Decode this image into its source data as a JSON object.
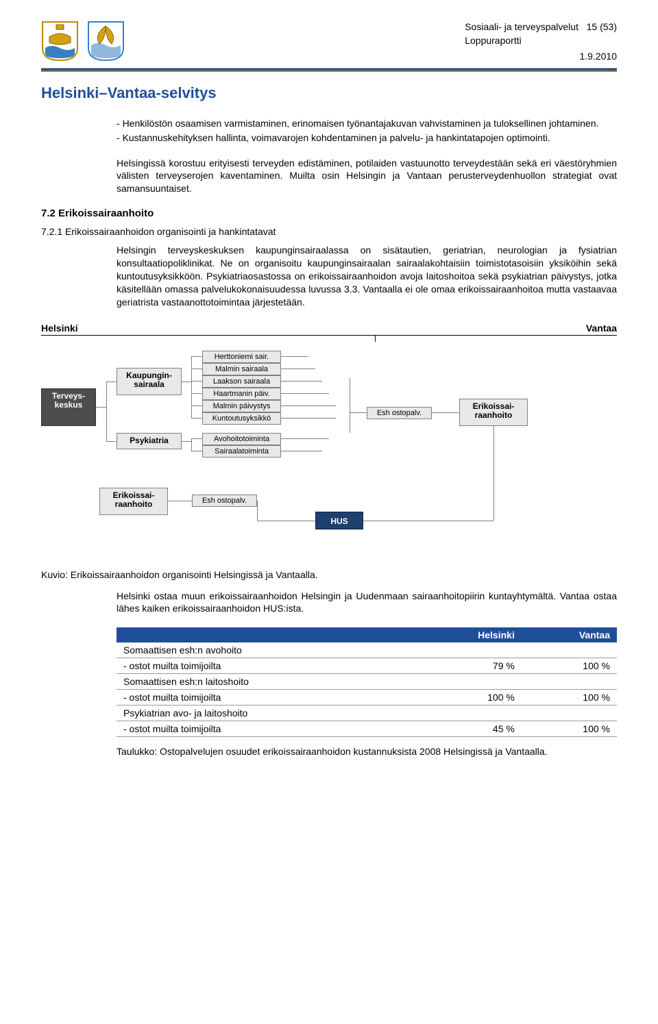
{
  "header": {
    "line1_left": "Sosiaali- ja terveyspalvelut",
    "line1_right": "15 (53)",
    "line2": "Loppuraportti",
    "date": "1.9.2010"
  },
  "doc_title": "Helsinki–Vantaa-selvitys",
  "bullets": [
    "Henkilöstön osaamisen varmistaminen, erinomaisen työnantajakuvan vahvistaminen ja tuloksellinen johtaminen.",
    "Kustannuskehityksen hallinta, voimavarojen kohdentaminen ja palvelu- ja hankintatapojen optimointi."
  ],
  "para1": "Helsingissä korostuu erityisesti terveyden edistäminen, potilaiden vastuunotto terveydestään sekä eri väestöryhmien välisten terveyserojen kaventaminen. Muilta osin Helsingin ja Vantaan perusterveydenhuollon strategiat ovat samansuuntaiset.",
  "h2": "7.2 Erikoissairaanhoito",
  "h3": "7.2.1 Erikoissairaanhoidon organisointi ja hankintatavat",
  "para2": "Helsingin terveyskeskuksen kaupunginsairaalassa on sisätautien, geriatrian, neurologian ja fysiatrian konsultaatiopoliklinikat. Ne on organisoitu kaupunginsairaalan sairaalakohtaisiin toimistotasoisiin yksiköihin sekä kuntoutusyksikköön. Psykiatriaosastossa on erikoissairaanhoidon avoja laitoshoitoa sekä psykiatrian päivystys, jotka käsitellään omassa palvelukokonaisuudessa luvussa 3.3. Vantaalla ei ole omaa erikoissairaanhoitoa mutta vastaavaa geriatrista vastaanottotoimintaa järjestetään.",
  "figure": {
    "left_label": "Helsinki",
    "right_label": "Vantaa",
    "boxes": {
      "terveyskeskus": "Terveys-\nkeskus",
      "kaupunginsairaala": "Kaupungin-\nsairaala",
      "psykiatria": "Psykiatria",
      "herttoniemi": "Herttoniemi sair.",
      "malmin_sair": "Malmin sairaala",
      "laakson": "Laakson sairaala",
      "haartmanin": "Haartmanin päiv.",
      "malmin_paiv": "Malmin päivystys",
      "kuntoutus": "Kuntoutusyksikkö",
      "avohoito": "Avohoitotoiminta",
      "sairaalatoim": "Sairaalatoiminta",
      "erikois1": "Erikoissai-\nraanhoito",
      "esh1": "Esh ostopalv.",
      "esh2": "Esh ostopalv.",
      "erikois2": "Erikoissai-\nraanhoito",
      "hus": "HUS"
    },
    "colors": {
      "box_bg": "#e8e8e8",
      "box_border": "#808080",
      "dark_bg": "#4d4d4d",
      "navy_bg": "#1f3f6e",
      "line": "#808080"
    }
  },
  "fig_caption": "Kuvio: Erikoissairaanhoidon organisointi Helsingissä ja Vantaalla.",
  "para3": "Helsinki ostaa muun erikoissairaanhoidon Helsingin ja Uudenmaan sairaanhoitopiirin kuntayhtymältä. Vantaa ostaa lähes kaiken erikoissairaanhoidon HUS:ista.",
  "table": {
    "headers": [
      "",
      "Helsinki",
      "Vantaa"
    ],
    "rows": [
      {
        "label": "Somaattisen esh:n avohoito",
        "values": [
          "",
          ""
        ]
      },
      {
        "label": "- ostot muilta toimijoilta",
        "values": [
          "79 %",
          "100 %"
        ]
      },
      {
        "label": "Somaattisen esh:n laitoshoito",
        "values": [
          "",
          ""
        ]
      },
      {
        "label": "- ostot muilta toimijoilta",
        "values": [
          "100 %",
          "100 %"
        ]
      },
      {
        "label": "Psykiatrian avo- ja laitoshoito",
        "values": [
          "",
          ""
        ]
      },
      {
        "label": "- ostot muilta toimijoilta",
        "values": [
          "45 %",
          "100 %"
        ]
      }
    ]
  },
  "table_caption": "Taulukko: Ostopalvelujen osuudet erikoissairaanhoidon kustannuksista 2008 Helsingissä ja Vantaalla."
}
